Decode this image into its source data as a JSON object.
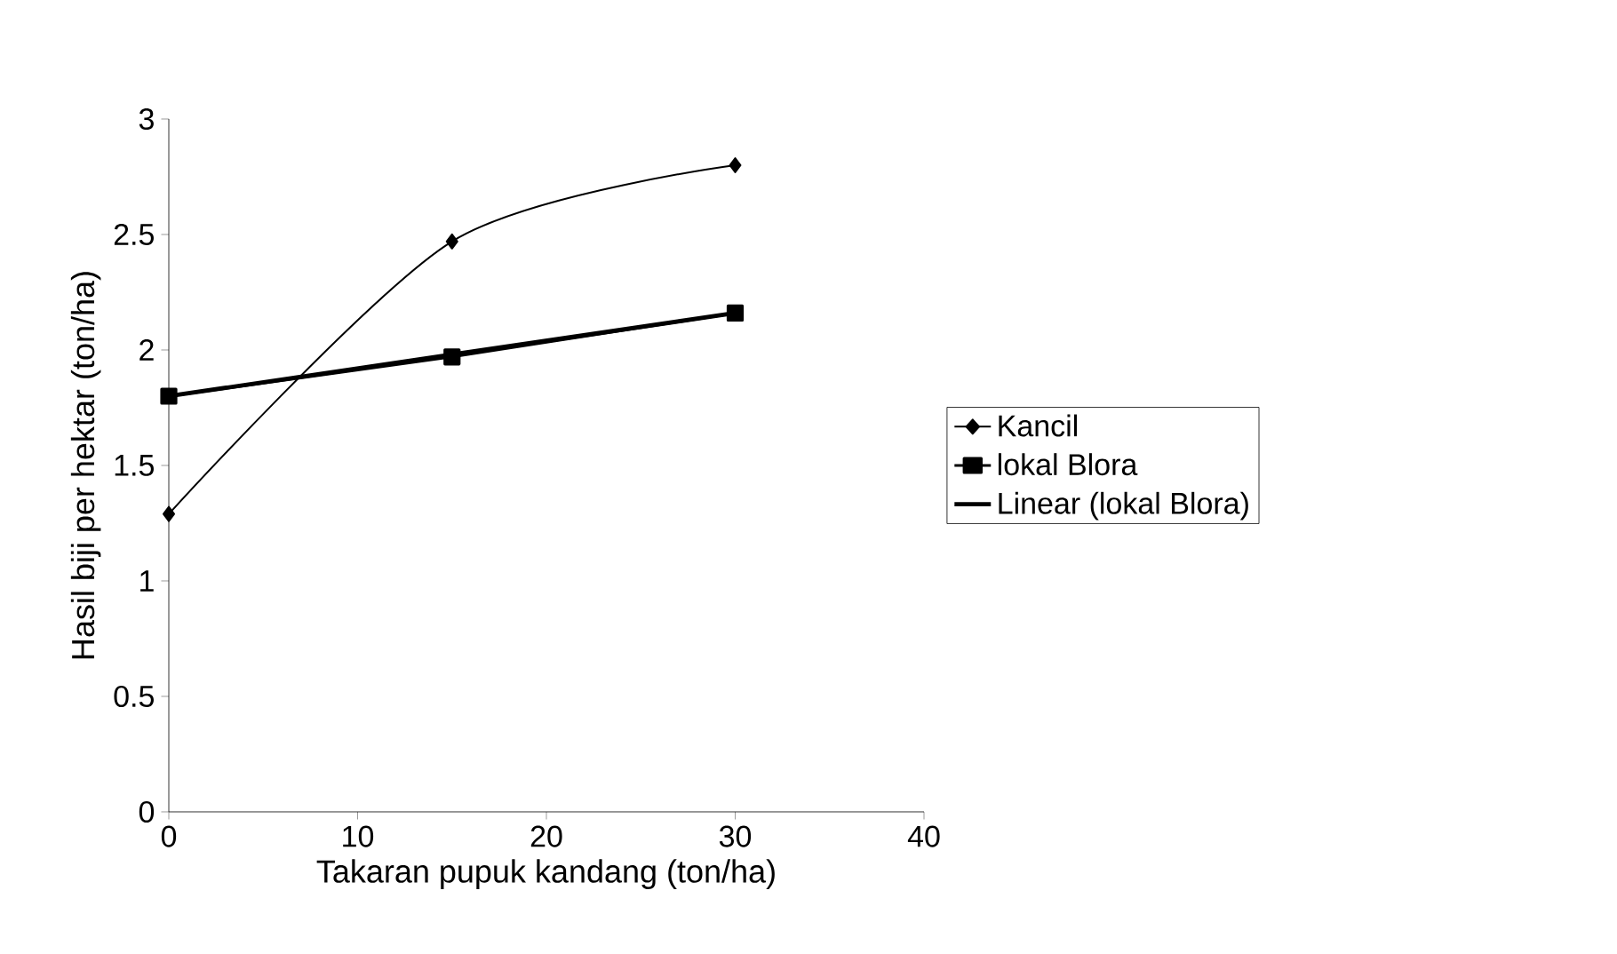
{
  "chart_data": {
    "type": "line",
    "xlabel": "Takaran pupuk kandang (ton/ha)",
    "ylabel": "Hasil biji per hektar (ton/ha)",
    "xlim": [
      0,
      40
    ],
    "xticks": [
      0,
      10,
      20,
      30,
      40
    ],
    "ylim": [
      0,
      3
    ],
    "yticks": [
      0,
      0.5,
      1,
      1.5,
      2,
      2.5,
      3
    ],
    "grid": false,
    "legend": "right",
    "series": [
      {
        "name": "Kancil",
        "color": "#000000",
        "x": [
          0,
          15,
          30
        ],
        "values": [
          1.29,
          2.47,
          2.8
        ],
        "marker": "diamond"
      },
      {
        "name": "lokal Blora",
        "color": "#000000",
        "x": [
          0,
          15,
          30
        ],
        "values": [
          1.8,
          1.97,
          2.16
        ],
        "marker": "square"
      },
      {
        "name": "Linear (lokal Blora)",
        "color": "#000000",
        "x": [
          0,
          30
        ],
        "values": [
          1.8,
          2.16
        ],
        "marker": "none"
      }
    ]
  }
}
